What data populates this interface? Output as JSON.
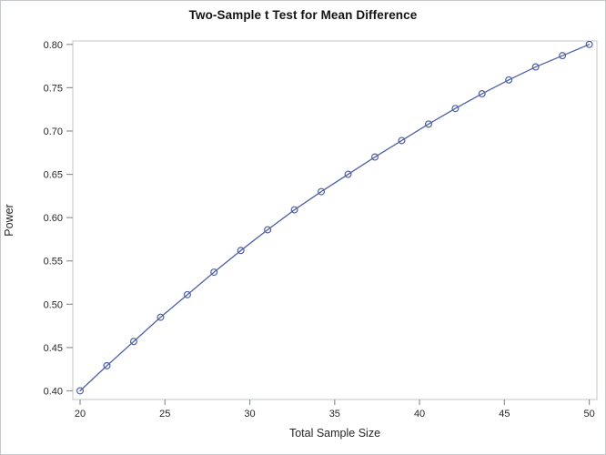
{
  "title": "Two-Sample t Test for Mean Difference",
  "chart_data": {
    "type": "line",
    "title": "Two-Sample t Test for Mean Difference",
    "xlabel": "Total Sample Size",
    "ylabel": "Power",
    "x": [
      20,
      21.58,
      23.16,
      24.74,
      26.32,
      27.89,
      29.47,
      31.05,
      32.63,
      34.21,
      35.79,
      37.37,
      38.95,
      40.53,
      42.11,
      43.68,
      45.26,
      46.84,
      48.42,
      50
    ],
    "series": [
      {
        "name": "Power",
        "values": [
          0.4,
          0.429,
          0.457,
          0.485,
          0.511,
          0.537,
          0.562,
          0.586,
          0.609,
          0.63,
          0.65,
          0.67,
          0.689,
          0.708,
          0.726,
          0.743,
          0.759,
          0.774,
          0.787,
          0.8
        ]
      }
    ],
    "x_ticks": [
      20,
      25,
      30,
      35,
      40,
      45,
      50
    ],
    "y_ticks": [
      0.4,
      0.45,
      0.5,
      0.55,
      0.6,
      0.65,
      0.7,
      0.75,
      0.8
    ],
    "y_tick_decimals": 2,
    "xlim": [
      19.57,
      50.45
    ],
    "ylim": [
      0.39,
      0.804
    ],
    "grid": false,
    "legend_position": "none",
    "marker": "open-circle",
    "colors": {
      "line": "#4e61a5",
      "marker": "#4e61a5",
      "frame": "#ccd0d6",
      "tick": "#8f9499",
      "tick_label": "#262626",
      "background": "#ffffff"
    }
  }
}
